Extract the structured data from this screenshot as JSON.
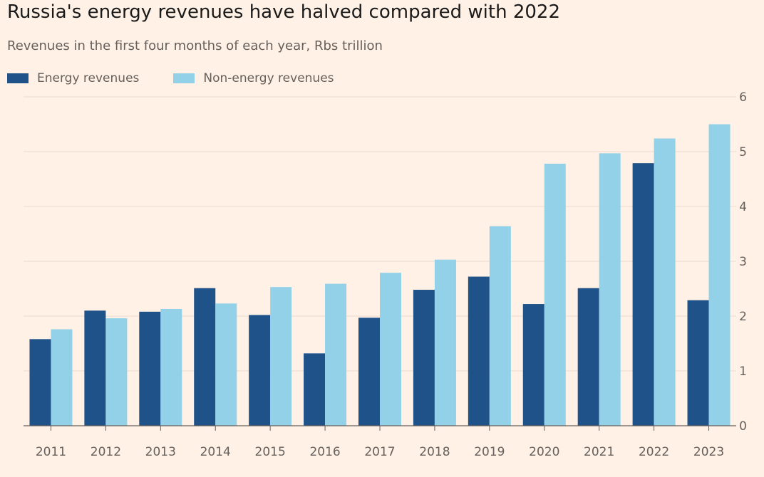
{
  "colors": {
    "energy": "#1f5289",
    "non_energy": "#92d1e8",
    "grid": "#e8dcd1",
    "axis": "#66605c",
    "tick_text": "#66605c",
    "background": "#fff1e5"
  },
  "chart_data": {
    "type": "bar",
    "title": "Russia's energy revenues have halved compared with 2022",
    "subtitle": "Revenues in the first four months of each year, Rbs trillion",
    "xlabel": "",
    "ylabel": "",
    "ylim": [
      0,
      6
    ],
    "yticks": [
      0,
      1,
      2,
      3,
      4,
      5,
      6
    ],
    "y_axis_position": "right",
    "grid": true,
    "legend_position": "top-left",
    "categories": [
      "2011",
      "2012",
      "2013",
      "2014",
      "2015",
      "2016",
      "2017",
      "2018",
      "2019",
      "2020",
      "2021",
      "2022",
      "2023"
    ],
    "series": [
      {
        "name": "Energy revenues",
        "values": [
          1.58,
          2.1,
          2.08,
          2.51,
          2.02,
          1.32,
          1.97,
          2.48,
          2.72,
          2.22,
          2.51,
          4.79,
          2.29
        ]
      },
      {
        "name": "Non-energy revenues",
        "values": [
          1.76,
          1.96,
          2.13,
          2.23,
          2.53,
          2.59,
          2.79,
          3.03,
          3.64,
          4.78,
          4.97,
          5.24,
          5.5
        ]
      }
    ]
  }
}
